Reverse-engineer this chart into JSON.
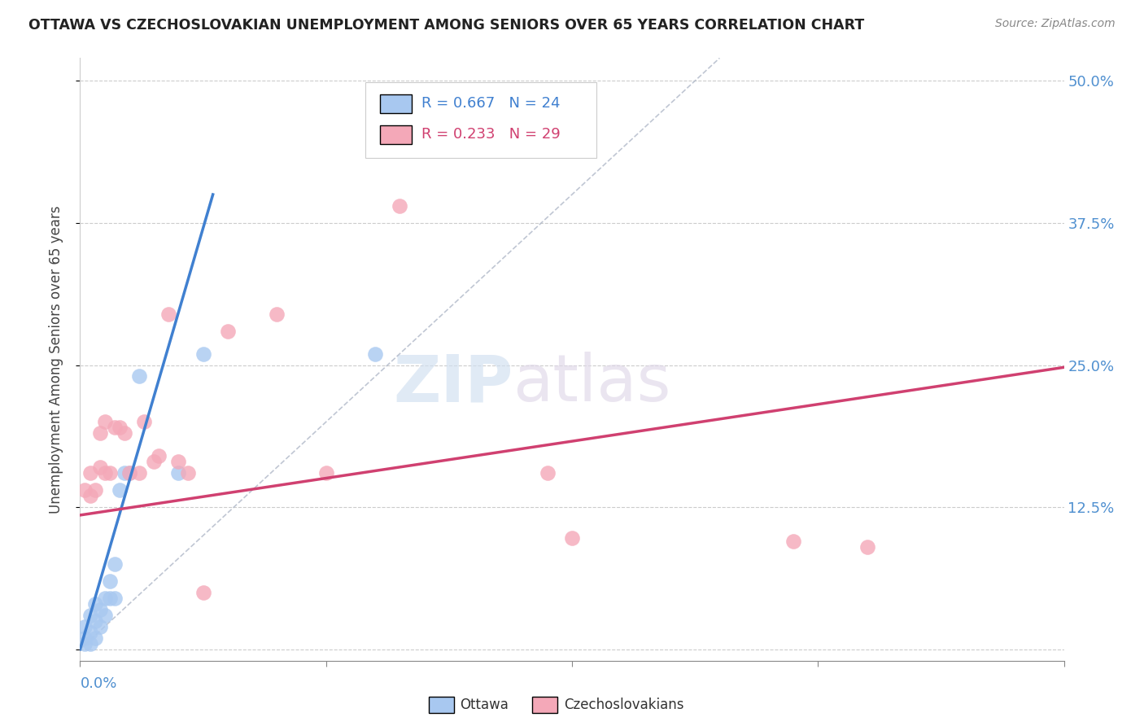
{
  "title": "OTTAWA VS CZECHOSLOVAKIAN UNEMPLOYMENT AMONG SENIORS OVER 65 YEARS CORRELATION CHART",
  "source": "Source: ZipAtlas.com",
  "ylabel": "Unemployment Among Seniors over 65 years",
  "yticks": [
    0.0,
    0.125,
    0.25,
    0.375,
    0.5
  ],
  "ytick_labels": [
    "",
    "12.5%",
    "25.0%",
    "37.5%",
    "50.0%"
  ],
  "xlim": [
    0.0,
    0.2
  ],
  "ylim": [
    -0.01,
    0.52
  ],
  "ottawa_R": 0.667,
  "ottawa_N": 24,
  "czech_R": 0.233,
  "czech_N": 29,
  "ottawa_color": "#a8c8f0",
  "czech_color": "#f4a8b8",
  "line_ottawa_color": "#4080d0",
  "line_czech_color": "#d04070",
  "watermark_zip": "ZIP",
  "watermark_atlas": "atlas",
  "ottawa_x": [
    0.001,
    0.001,
    0.001,
    0.002,
    0.002,
    0.002,
    0.003,
    0.003,
    0.003,
    0.004,
    0.004,
    0.005,
    0.005,
    0.006,
    0.006,
    0.007,
    0.007,
    0.008,
    0.009,
    0.01,
    0.012,
    0.02,
    0.025,
    0.06
  ],
  "ottawa_y": [
    0.005,
    0.01,
    0.02,
    0.005,
    0.015,
    0.03,
    0.01,
    0.025,
    0.04,
    0.02,
    0.035,
    0.03,
    0.045,
    0.045,
    0.06,
    0.045,
    0.075,
    0.14,
    0.155,
    0.155,
    0.24,
    0.155,
    0.26,
    0.26
  ],
  "czech_x": [
    0.001,
    0.002,
    0.002,
    0.003,
    0.004,
    0.004,
    0.005,
    0.005,
    0.006,
    0.007,
    0.008,
    0.009,
    0.01,
    0.012,
    0.013,
    0.015,
    0.016,
    0.018,
    0.02,
    0.022,
    0.025,
    0.03,
    0.04,
    0.05,
    0.065,
    0.095,
    0.1,
    0.145,
    0.16
  ],
  "czech_y": [
    0.14,
    0.135,
    0.155,
    0.14,
    0.19,
    0.16,
    0.155,
    0.2,
    0.155,
    0.195,
    0.195,
    0.19,
    0.155,
    0.155,
    0.2,
    0.165,
    0.17,
    0.295,
    0.165,
    0.155,
    0.05,
    0.28,
    0.295,
    0.155,
    0.39,
    0.155,
    0.098,
    0.095,
    0.09
  ],
  "ottawa_line_x0": 0.0,
  "ottawa_line_y0": 0.0,
  "ottawa_line_x1": 0.027,
  "ottawa_line_y1": 0.4,
  "czech_line_x0": 0.0,
  "czech_line_y0": 0.118,
  "czech_line_x1": 0.2,
  "czech_line_y1": 0.248
}
